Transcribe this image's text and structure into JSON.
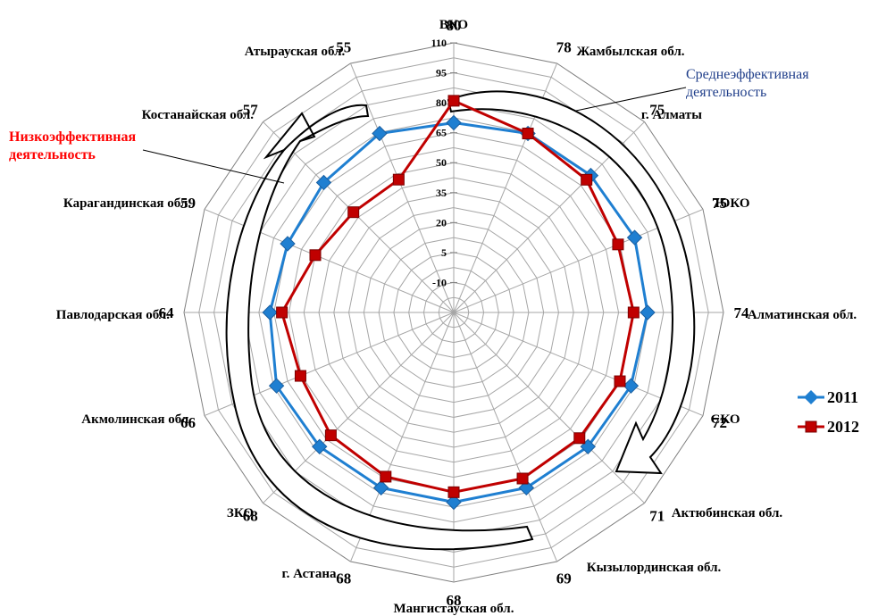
{
  "chart_data": {
    "type": "radar",
    "categories": [
      "ВКО",
      "Жамбылская обл.",
      "г. Алматы",
      "ЮКО",
      "Алматинская обл.",
      "СКО",
      "Актюбинская обл.",
      "Кызылординская обл.",
      "Мангистауская обл.",
      "г. Астана",
      "ЗКО",
      "Акмолинская обл.",
      "Павлодарская обл.",
      "Карагандинская обл.",
      "Костанайская обл.",
      "Атырауская обл."
    ],
    "value_labels": [
      "80",
      "78",
      "75",
      "75",
      "74",
      "72",
      "71",
      "69",
      "68",
      "68",
      "68",
      "66",
      "64",
      "59",
      "57",
      "55"
    ],
    "series": [
      {
        "name": "2011",
        "color": "#1f7fd1",
        "marker": "diamond",
        "values": [
          70,
          72,
          72,
          73,
          72,
          71,
          70,
          70,
          70,
          70,
          70,
          71,
          67,
          65,
          67,
          72
        ]
      },
      {
        "name": "2012",
        "color": "#c00000",
        "marker": "square",
        "values": [
          81,
          72,
          69,
          64,
          65,
          65,
          64,
          65,
          65,
          64,
          62,
          58,
          61,
          50,
          46,
          47
        ]
      }
    ],
    "rlim": [
      -25,
      110
    ],
    "radial_ticks": [
      -10,
      5,
      20,
      35,
      50,
      65,
      80,
      95,
      110
    ],
    "grid": true,
    "legend_position": "right",
    "annotations": {
      "low": "Низкоэффективная деятельность",
      "mid": "Среднеэффективная деятельность"
    }
  }
}
